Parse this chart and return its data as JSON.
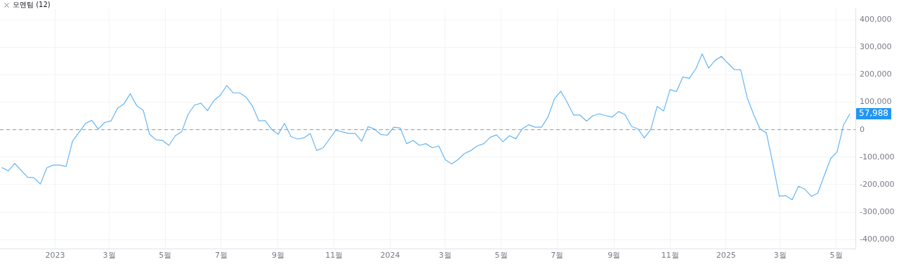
{
  "chart_data": {
    "type": "line",
    "title": "모멘텀 (12)",
    "x": [
      "2022-11-04",
      "2022-11-11",
      "2022-11-18",
      "2022-12-02",
      "2022-12-09",
      "2022-12-16",
      "2022-12-23",
      "2022-12-30",
      "2023-01-06",
      "2023-01-13",
      "2023-01-20",
      "2023-01-27",
      "2023-02-03",
      "2023-02-10",
      "2023-02-17",
      "2023-02-24",
      "2023-03-03",
      "2023-03-10",
      "2023-03-17",
      "2023-03-24",
      "2023-03-31",
      "2023-04-07",
      "2023-04-14",
      "2023-04-21",
      "2023-04-28",
      "2023-05-05",
      "2023-05-12",
      "2023-05-19",
      "2023-05-26",
      "2023-06-02",
      "2023-06-09",
      "2023-06-16",
      "2023-06-23",
      "2023-06-30",
      "2023-07-07",
      "2023-07-14",
      "2023-07-21",
      "2023-07-28",
      "2023-08-04",
      "2023-08-11",
      "2023-08-18",
      "2023-08-25",
      "2023-09-01",
      "2023-09-08",
      "2023-09-15",
      "2023-09-22",
      "2023-09-29",
      "2023-10-06",
      "2023-10-13",
      "2023-10-20",
      "2023-11-03",
      "2023-11-17",
      "2023-11-24",
      "2023-12-01",
      "2023-12-08",
      "2023-12-15",
      "2023-12-22",
      "2023-12-29",
      "2024-01-05",
      "2024-01-12",
      "2024-01-19",
      "2024-01-26",
      "2024-02-02",
      "2024-02-09",
      "2024-02-16",
      "2024-02-23",
      "2024-03-01",
      "2024-03-08",
      "2024-03-15",
      "2024-03-22",
      "2024-03-29",
      "2024-04-05",
      "2024-04-12",
      "2024-04-19",
      "2024-04-26",
      "2024-05-03",
      "2024-05-10",
      "2024-05-17",
      "2024-05-24",
      "2024-05-31",
      "2024-06-07",
      "2024-06-14",
      "2024-06-21",
      "2024-06-28",
      "2024-07-05",
      "2024-07-12",
      "2024-07-19",
      "2024-07-26",
      "2024-08-02",
      "2024-08-09",
      "2024-08-16",
      "2024-08-23",
      "2024-08-30",
      "2024-09-06",
      "2024-09-13",
      "2024-09-20",
      "2024-09-27",
      "2024-10-04",
      "2024-10-11",
      "2024-10-18",
      "2024-10-25",
      "2024-11-01",
      "2024-11-08",
      "2024-11-15",
      "2024-11-22",
      "2024-11-29",
      "2024-12-06",
      "2024-12-13",
      "2024-12-20",
      "2024-12-27",
      "2025-01-03",
      "2025-01-10",
      "2025-01-17",
      "2025-01-24",
      "2025-01-31",
      "2025-02-07",
      "2025-02-14",
      "2025-02-21",
      "2025-02-28",
      "2025-03-07",
      "2025-03-14",
      "2025-03-21",
      "2025-03-28",
      "2025-04-04",
      "2025-04-11",
      "2025-04-18",
      "2025-04-25",
      "2025-05-02",
      "2025-05-09",
      "2025-05-16"
    ],
    "series": [
      {
        "color": "#64b5f6",
        "values": [
          -138000,
          -150000,
          -123000,
          -173000,
          -175000,
          -198000,
          -139000,
          -129000,
          -129000,
          -134000,
          -42000,
          -10000,
          22000,
          34000,
          2000,
          26000,
          32000,
          78000,
          94000,
          131000,
          87000,
          71000,
          -17000,
          -37000,
          -39000,
          -57000,
          -22000,
          -7000,
          56000,
          90000,
          96000,
          69000,
          106000,
          125000,
          161000,
          134000,
          134000,
          119000,
          86000,
          32000,
          33000,
          1000,
          -17000,
          23000,
          -25000,
          -34000,
          -30000,
          -14000,
          -76000,
          -66000,
          -2000,
          -14000,
          -14000,
          -42000,
          11000,
          2000,
          -18000,
          -20000,
          9000,
          6000,
          -51000,
          -39000,
          -57000,
          -51000,
          -66000,
          -59000,
          -109000,
          -125000,
          -109000,
          -87000,
          -76000,
          -59000,
          -51000,
          -28000,
          -19000,
          -44000,
          -22000,
          -33000,
          3000,
          18000,
          9000,
          9000,
          46000,
          112000,
          140000,
          99000,
          53000,
          53000,
          31000,
          51000,
          58000,
          51000,
          46000,
          66000,
          55000,
          12000,
          3000,
          -30000,
          1000,
          85000,
          68000,
          146000,
          139000,
          192000,
          187000,
          221000,
          276000,
          224000,
          252000,
          267000,
          242000,
          219000,
          218000,
          117000,
          56000,
          3000,
          -12000,
          -124000,
          -242000,
          -240000,
          -255000,
          -206000,
          -217000,
          -243000,
          -231000,
          -167000,
          -105000,
          -81000,
          17000,
          57988
        ]
      }
    ],
    "xlim": [
      "2022-11-02",
      "2025-05-22"
    ],
    "xticks": [
      {
        "value": "2023-01-01",
        "label": "2023"
      },
      {
        "value": "2023-03-01",
        "label": "3월"
      },
      {
        "value": "2023-05-01",
        "label": "5월"
      },
      {
        "value": "2023-07-01",
        "label": "7월"
      },
      {
        "value": "2023-09-01",
        "label": "9월"
      },
      {
        "value": "2023-11-01",
        "label": "11월"
      },
      {
        "value": "2024-01-01",
        "label": "2024"
      },
      {
        "value": "2024-03-01",
        "label": "3월"
      },
      {
        "value": "2024-05-01",
        "label": "5월"
      },
      {
        "value": "2024-07-01",
        "label": "7월"
      },
      {
        "value": "2024-09-01",
        "label": "9월"
      },
      {
        "value": "2024-11-01",
        "label": "11월"
      },
      {
        "value": "2025-01-01",
        "label": "2025"
      },
      {
        "value": "2025-03-01",
        "label": "3월"
      },
      {
        "value": "2025-05-01",
        "label": "5월"
      }
    ],
    "ylim": [
      -435000,
      440000
    ],
    "yticks": [
      {
        "value": -400000,
        "label": "-400,000"
      },
      {
        "value": -300000,
        "label": "-300,000"
      },
      {
        "value": -200000,
        "label": "-200,000"
      },
      {
        "value": -100000,
        "label": "-100,000"
      },
      0,
      {
        "value": 100000,
        "label": "100,000"
      },
      {
        "value": 200000,
        "label": "200,000"
      },
      {
        "value": 300000,
        "label": "300,000"
      },
      {
        "value": 400000,
        "label": "400,000"
      }
    ],
    "ref_lines": [
      {
        "axis": "y",
        "value": 0,
        "color": "#9598a1",
        "line_style": "dashed"
      }
    ],
    "annotations": [
      {
        "text": "57,988",
        "x": "2025-05-16",
        "y": 57988
      }
    ],
    "grid": true,
    "legend": false,
    "marker": "none",
    "line_style": "solid"
  }
}
